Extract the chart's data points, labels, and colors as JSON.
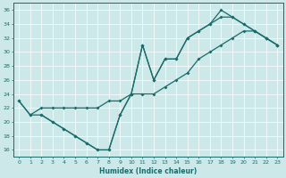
{
  "xlabel": "Humidex (Indice chaleur)",
  "xlim": [
    -0.5,
    23.5
  ],
  "ylim": [
    15,
    37
  ],
  "xticks": [
    0,
    1,
    2,
    3,
    4,
    5,
    6,
    7,
    8,
    9,
    10,
    11,
    12,
    13,
    14,
    15,
    16,
    17,
    18,
    19,
    20,
    21,
    22,
    23
  ],
  "yticks": [
    16,
    18,
    20,
    22,
    24,
    26,
    28,
    30,
    32,
    34,
    36
  ],
  "bg_color": "#cce8e8",
  "line_color": "#1a6b6b",
  "line1": {
    "x": [
      0,
      1,
      2,
      3,
      4,
      5,
      6,
      7,
      8,
      9,
      10,
      11,
      12,
      13,
      14,
      15,
      16,
      17,
      18,
      19,
      20,
      21,
      22,
      23
    ],
    "y": [
      23,
      21,
      21,
      20,
      19,
      18,
      17,
      16,
      16,
      21,
      24,
      31,
      26,
      29,
      29,
      32,
      33,
      34,
      36,
      35,
      34,
      33,
      32,
      31
    ]
  },
  "line2": {
    "x": [
      0,
      1,
      2,
      3,
      4,
      5,
      6,
      7,
      8,
      9,
      10,
      11,
      12,
      13,
      14,
      15,
      16,
      17,
      18,
      19,
      20,
      21,
      22,
      23
    ],
    "y": [
      23,
      21,
      22,
      22,
      22,
      22,
      22,
      22,
      23,
      23,
      24,
      24,
      24,
      25,
      26,
      27,
      29,
      30,
      31,
      32,
      33,
      33,
      32,
      31
    ]
  },
  "line3": {
    "x": [
      2,
      3,
      4,
      5,
      6,
      7,
      8,
      9,
      10,
      11,
      12,
      13,
      14,
      15,
      16,
      17,
      18,
      19,
      20,
      21,
      22,
      23
    ],
    "y": [
      21,
      20,
      19,
      18,
      17,
      16,
      16,
      21,
      24,
      31,
      26,
      29,
      29,
      32,
      33,
      34,
      35,
      35,
      34,
      33,
      32,
      31
    ]
  }
}
